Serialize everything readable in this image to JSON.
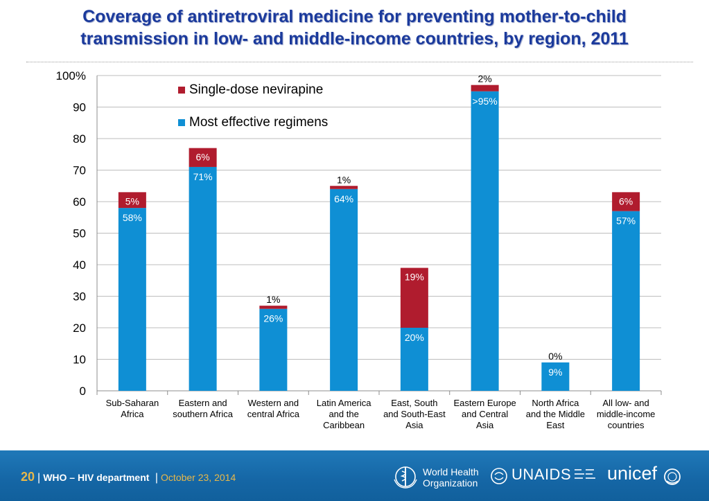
{
  "slide": {
    "title_line1": "Coverage of antiretroviral medicine for preventing mother-to-child",
    "title_line2": "transmission in low- and middle-income countries, by region, 2011"
  },
  "chart_data": {
    "type": "bar",
    "stacked": true,
    "ylim": [
      0,
      100
    ],
    "yticks": [
      0,
      10,
      20,
      30,
      40,
      50,
      60,
      70,
      80,
      90,
      100
    ],
    "ytick_labels": [
      "0",
      "10",
      "20",
      "30",
      "40",
      "50",
      "60",
      "70",
      "80",
      "90",
      "100%"
    ],
    "grid": true,
    "legend_position": "top-left",
    "categories": [
      "Sub-Saharan Africa",
      "Eastern and southern Africa",
      "Western and central Africa",
      "Latin America and the Caribbean",
      "East, South and South-East Asia",
      "Eastern Europe and Central Asia",
      "North Africa and the Middle East",
      "All low- and middle-income countries"
    ],
    "category_label_lines": [
      [
        "Sub-Saharan",
        "Africa"
      ],
      [
        "Eastern and",
        "southern Africa"
      ],
      [
        "Western and",
        "central Africa"
      ],
      [
        "Latin America",
        "and the",
        "Caribbean"
      ],
      [
        "East, South",
        "and South-East",
        "Asia"
      ],
      [
        "Eastern Europe",
        "and Central",
        "Asia"
      ],
      [
        "North Africa",
        "and the Middle",
        "East"
      ],
      [
        "All low- and",
        "middle-income",
        "countries"
      ]
    ],
    "series": [
      {
        "name": "Most effective regimens",
        "color": "#0f8fd4",
        "values": [
          58,
          71,
          26,
          64,
          20,
          95,
          9,
          57
        ],
        "labels": [
          "58%",
          "71%",
          "26%",
          "64%",
          "20%",
          ">95%",
          "9%",
          "57%"
        ]
      },
      {
        "name": "Single-dose nevirapine",
        "color": "#b01c2e",
        "values": [
          5,
          6,
          1,
          1,
          19,
          2,
          0,
          6
        ],
        "labels": [
          "5%",
          "6%",
          "1%",
          "1%",
          "19%",
          "2%",
          "0%",
          "6%"
        ]
      }
    ],
    "legend": [
      {
        "name": "Single-dose nevirapine",
        "color": "#b01c2e"
      },
      {
        "name": "Most effective regimens",
        "color": "#0f8fd4"
      }
    ]
  },
  "footer": {
    "page_number": "20",
    "separator": "|",
    "department": "WHO – HIV department",
    "date": "October 23, 2014",
    "logos": {
      "who_line1": "World Health",
      "who_line2": "Organization",
      "unaids": "UNAIDS",
      "unicef": "unicef"
    }
  }
}
